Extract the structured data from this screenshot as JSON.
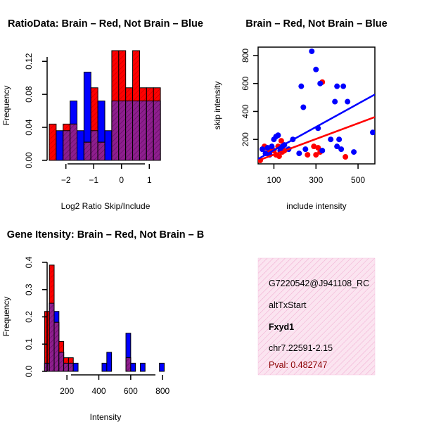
{
  "colors": {
    "red": "#ff0000",
    "blue": "#0000ff",
    "overlap": "#8e1e8e",
    "info_bg": "#f9d7ea",
    "pval": "#8b0000"
  },
  "chart_data": [
    {
      "type": "histogram",
      "title": "RatioData: Brain – Red, Not Brain – Blue",
      "xlabel": "Log2 Ratio Skip/Include",
      "ylabel": "Frequency",
      "xlim": [
        -2.6,
        1.6
      ],
      "ylim": [
        0,
        0.133
      ],
      "xticks": [
        -2,
        -1,
        0,
        1
      ],
      "xtick_labels": [
        "−2",
        "−1",
        "0",
        "1"
      ],
      "yticks": [
        0,
        0.04,
        0.08,
        0.12
      ],
      "ytick_labels": [
        "0.00",
        "0.04",
        "0.08",
        "0.12"
      ],
      "bin_width": 0.25,
      "bin_starts": [
        -2.6,
        -2.35,
        -2.1,
        -1.85,
        -1.6,
        -1.35,
        -1.1,
        -0.85,
        -0.6,
        -0.35,
        -0.1,
        0.15,
        0.4,
        0.65,
        0.9,
        1.15
      ],
      "series": [
        {
          "name": "Brain",
          "color": "red",
          "values": [
            0.044,
            0,
            0.044,
            0.044,
            0,
            0.022,
            0.088,
            0.022,
            0,
            0.133,
            0.133,
            0.088,
            0.133,
            0.088,
            0.088,
            0.088
          ]
        },
        {
          "name": "Not Brain",
          "color": "blue",
          "values": [
            0,
            0.036,
            0.036,
            0.072,
            0.036,
            0.107,
            0.036,
            0.072,
            0.036,
            0.072,
            0.072,
            0.072,
            0.072,
            0.072,
            0.072,
            0.072
          ]
        }
      ]
    },
    {
      "type": "scatter",
      "title": "Brain – Red, Not Brain – Blue",
      "xlabel": "include intensity",
      "ylabel": "skip intensity",
      "xlim": [
        25,
        580
      ],
      "ylim": [
        25,
        860
      ],
      "xticks": [
        100,
        300,
        500
      ],
      "xtick_labels": [
        "100",
        "300",
        "500"
      ],
      "yticks": [
        200,
        400,
        600,
        800
      ],
      "ytick_labels": [
        "200",
        "400",
        "600",
        "800"
      ],
      "series": [
        {
          "name": "Brain",
          "color": "red",
          "points": [
            [
              35,
              50
            ],
            [
              45,
              130
            ],
            [
              55,
              150
            ],
            [
              65,
              140
            ],
            [
              70,
              100
            ],
            [
              80,
              110
            ],
            [
              90,
              140
            ],
            [
              100,
              120
            ],
            [
              110,
              90
            ],
            [
              120,
              150
            ],
            [
              125,
              80
            ],
            [
              135,
              190
            ],
            [
              140,
              110
            ],
            [
              150,
              120
            ],
            [
              260,
              90
            ],
            [
              290,
              150
            ],
            [
              300,
              90
            ],
            [
              310,
              140
            ],
            [
              320,
              110
            ],
            [
              330,
              610
            ],
            [
              440,
              75
            ]
          ],
          "fit": {
            "slope": 0.56,
            "intercept": 35
          }
        },
        {
          "name": "Not Brain",
          "color": "blue",
          "points": [
            [
              45,
              130
            ],
            [
              60,
              100
            ],
            [
              70,
              140
            ],
            [
              80,
              90
            ],
            [
              90,
              150
            ],
            [
              100,
              200
            ],
            [
              110,
              220
            ],
            [
              120,
              230
            ],
            [
              130,
              120
            ],
            [
              140,
              150
            ],
            [
              150,
              160
            ],
            [
              170,
              130
            ],
            [
              190,
              200
            ],
            [
              220,
              100
            ],
            [
              230,
              580
            ],
            [
              240,
              430
            ],
            [
              250,
              130
            ],
            [
              280,
              830
            ],
            [
              300,
              700
            ],
            [
              310,
              280
            ],
            [
              320,
              600
            ],
            [
              330,
              120
            ],
            [
              370,
              200
            ],
            [
              390,
              470
            ],
            [
              400,
              150
            ],
            [
              400,
              580
            ],
            [
              410,
              200
            ],
            [
              420,
              130
            ],
            [
              430,
              580
            ],
            [
              450,
              470
            ],
            [
              480,
              110
            ],
            [
              570,
              250
            ]
          ],
          "fit": {
            "slope": 0.83,
            "intercept": 40
          }
        }
      ]
    },
    {
      "type": "histogram",
      "title": "Gene Itensity: Brain – Red, Not Brain – B",
      "xlabel": "Intensity",
      "ylabel": "Frequency",
      "xlim": [
        45,
        830
      ],
      "ylim": [
        0,
        0.4
      ],
      "xticks": [
        200,
        400,
        600,
        800
      ],
      "xtick_labels": [
        "200",
        "400",
        "600",
        "800"
      ],
      "yticks": [
        0,
        0.1,
        0.2,
        0.3,
        0.4
      ],
      "ytick_labels": [
        "0.0",
        "0.1",
        "0.2",
        "0.3",
        "0.4"
      ],
      "bin_width": 30,
      "bin_starts": [
        60,
        90,
        120,
        150,
        180,
        210,
        240,
        270,
        300,
        330,
        360,
        390,
        420,
        450,
        480,
        510,
        540,
        570,
        600,
        630,
        660,
        690,
        720,
        750,
        780,
        810
      ],
      "series": [
        {
          "name": "Brain",
          "color": "red",
          "values": [
            0.22,
            0.39,
            0.18,
            0.11,
            0.05,
            0.05,
            0,
            0,
            0,
            0,
            0,
            0,
            0,
            0,
            0,
            0,
            0,
            0.05,
            0,
            0,
            0,
            0,
            0,
            0,
            0,
            0
          ]
        },
        {
          "name": "Not Brain",
          "color": "blue",
          "values": [
            0.03,
            0.25,
            0.22,
            0.07,
            0.03,
            0.03,
            0.03,
            0,
            0,
            0,
            0,
            0,
            0.03,
            0.07,
            0,
            0,
            0,
            0.14,
            0.03,
            0,
            0.03,
            0,
            0,
            0,
            0.03,
            0
          ]
        }
      ]
    }
  ],
  "info_panel": {
    "id": "G7220542@J941108_RC",
    "event_type": "altTxStart",
    "gene": "Fxyd1",
    "location": "chr7.22591-2.15",
    "pval": "Pval: 0.482747"
  }
}
